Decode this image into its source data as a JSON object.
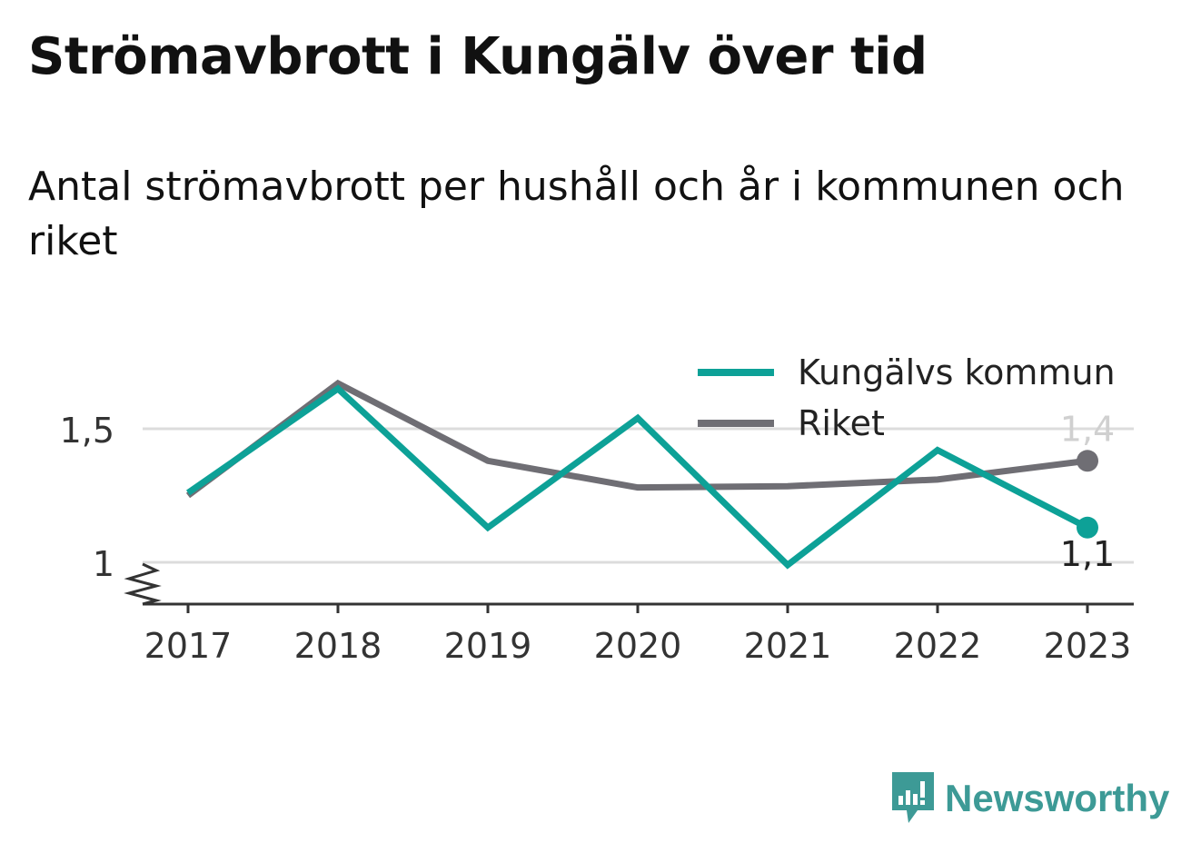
{
  "title": "Strömavbrott i Kungälv över tid",
  "subtitle": "Antal strömavbrott per hushåll och år i kommunen och riket",
  "brand": {
    "name": "Newsworthy",
    "color": "#3d9a96",
    "icon": "bar-chart-bubble-icon"
  },
  "chart_data": {
    "type": "line",
    "x": [
      "2017",
      "2018",
      "2019",
      "2020",
      "2021",
      "2022",
      "2023"
    ],
    "ylim": [
      0.85,
      1.68
    ],
    "yticks": [
      {
        "value": 1,
        "label": "1"
      },
      {
        "value": 1.5,
        "label": "1,5"
      }
    ],
    "axis_break": true,
    "grid": true,
    "legend": "top-right",
    "series": [
      {
        "name": "Kungälvs kommun",
        "color": "#0da197",
        "values": [
          1.26,
          1.65,
          1.13,
          1.54,
          0.99,
          1.42,
          1.13
        ],
        "end_label": "1,1"
      },
      {
        "name": "Riket",
        "color": "#6f6e74",
        "values": [
          1.25,
          1.67,
          1.38,
          1.28,
          1.285,
          1.31,
          1.38
        ],
        "end_label": "1,4"
      }
    ]
  }
}
